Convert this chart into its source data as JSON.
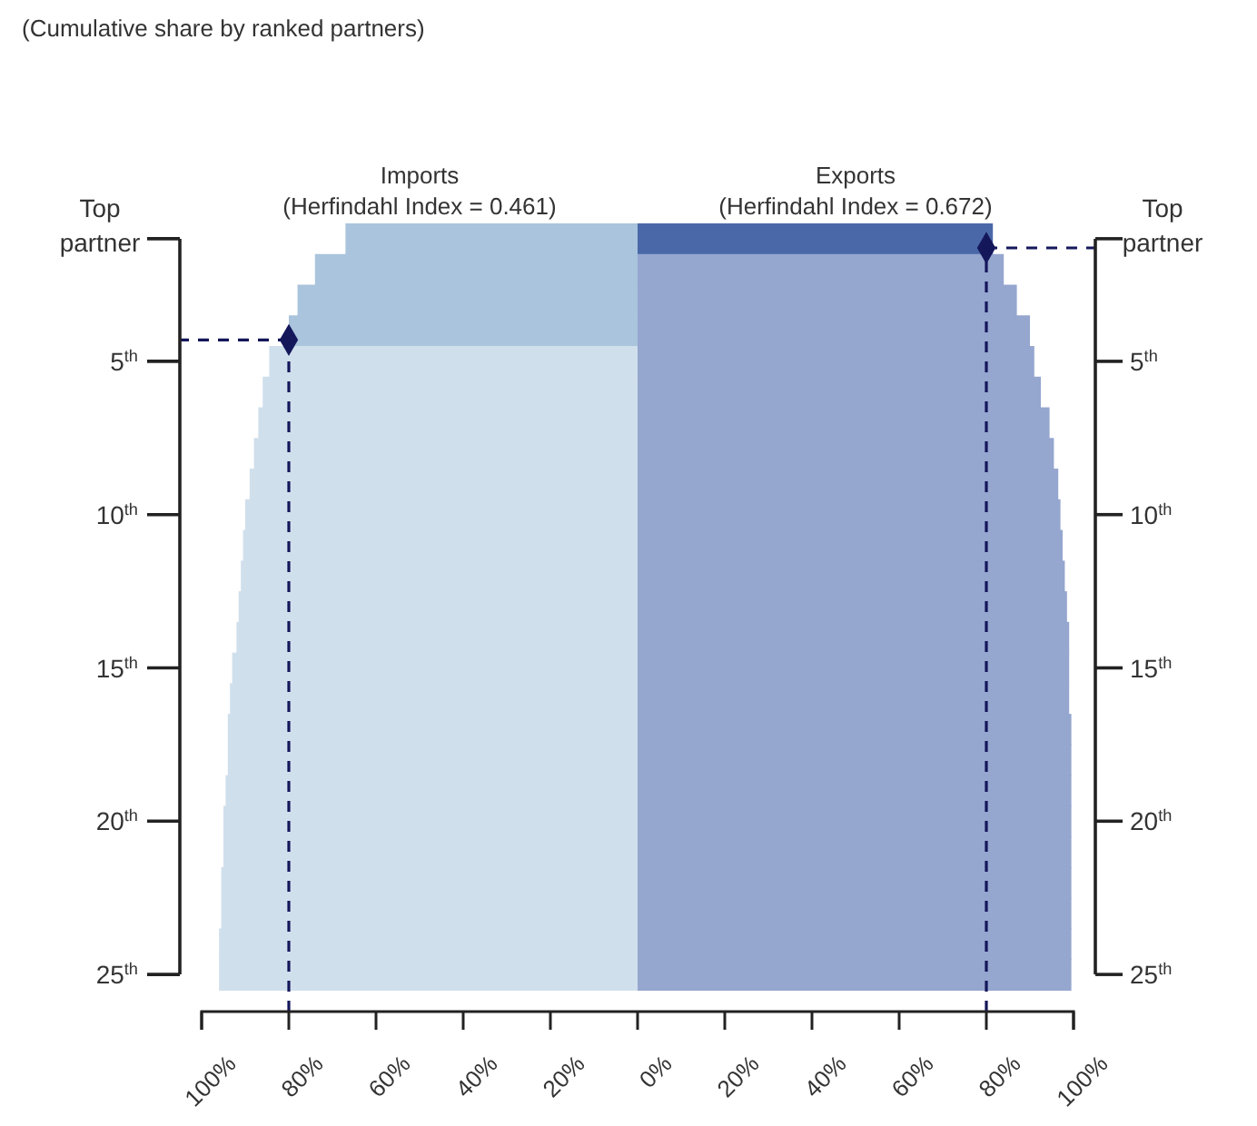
{
  "chart_data": {
    "type": "bar",
    "orientation": "horizontal",
    "stacked": true,
    "ref_lines": [
      {
        "axis": "x",
        "value": -80,
        "color": "#14175a",
        "line_style": "dashed"
      },
      {
        "axis": "x",
        "value": 80,
        "color": "#14175a",
        "line_style": "dashed"
      }
    ],
    "title": "(Cumulative share by ranked partners)",
    "categories": [
      "Top partner",
      null,
      null,
      null,
      "5$^{th}$",
      null,
      null,
      null,
      null,
      "10$^{th}$",
      null,
      null,
      null,
      null,
      "15$^{th}$",
      null,
      null,
      null,
      null,
      "20$^{th}$",
      null,
      null,
      null,
      null,
      "25$^{th}$"
    ],
    "series": [
      {
        "name": "Imports",
        "colors": [
          "#a9c4dc",
          "#a9c4dc",
          "#a9c4dc",
          "#a9c4dc",
          "#d0dfec",
          "#d0dfec",
          "#d0dfec",
          "#d0dfec",
          "#d0dfec",
          "#d0dfec",
          "#d0dfec",
          "#d0dfec",
          "#d0dfec",
          "#d0dfec",
          "#d0dfec",
          "#d0dfec",
          "#d0dfec",
          "#d0dfec",
          "#d0dfec",
          "#d0dfec",
          "#d0dfec",
          "#d0dfec",
          "#d0dfec",
          "#d0dfec",
          "#d0dfec"
        ],
        "values": [
          -67,
          -74,
          -78,
          -80,
          -84.5,
          -86,
          -87,
          -88,
          -89,
          -90,
          -90.5,
          -91,
          -91.5,
          -92,
          -93,
          -93.5,
          -94,
          -94,
          -94.5,
          -95,
          -95,
          -95.5,
          -95.5,
          -96,
          -96
        ]
      },
      {
        "name": "Exports",
        "colors": [
          "#4a68a8",
          "#95a6cf",
          "#95a6cf",
          "#95a6cf",
          "#95a6cf",
          "#95a6cf",
          "#95a6cf",
          "#95a6cf",
          "#95a6cf",
          "#95a6cf",
          "#95a6cf",
          "#95a6cf",
          "#95a6cf",
          "#95a6cf",
          "#95a6cf",
          "#95a6cf",
          "#95a6cf",
          "#95a6cf",
          "#95a6cf",
          "#95a6cf",
          "#95a6cf",
          "#95a6cf",
          "#95a6cf",
          "#95a6cf",
          "#95a6cf"
        ],
        "values": [
          81.5,
          84,
          87,
          90,
          91,
          92.5,
          94.5,
          95.5,
          96.5,
          97,
          97.5,
          98,
          98.5,
          99,
          99,
          99,
          99.5,
          99.5,
          99.5,
          99.5,
          99.5,
          99.5,
          99.5,
          99.5,
          99.5
        ]
      },
      {
        "type": "scatter",
        "marker": "diamond",
        "line_style": "dashed",
        "color": "#14175a",
        "values": [
          null,
          null,
          null,
          -80,
          null,
          null,
          null,
          null,
          null,
          null,
          null,
          null,
          null,
          null,
          null,
          null,
          null,
          null,
          null,
          null,
          null,
          null,
          null,
          null,
          null
        ]
      },
      {
        "type": "scatter",
        "marker": "diamond",
        "line_style": "dashed",
        "color": "#14175a",
        "values": [
          80,
          null,
          null,
          null,
          null,
          null,
          null,
          null,
          null,
          null,
          null,
          null,
          null,
          null,
          null,
          null,
          null,
          null,
          null,
          null,
          null,
          null,
          null,
          null,
          null
        ]
      }
    ],
    "annotations": [
      "(Herfindahl Index = 0.461)",
      "(Herfindahl Index = 0.672)"
    ],
    "xlim": [
      -100,
      100
    ],
    "xticks": [
      {
        "value": -100,
        "label": "100%"
      },
      {
        "value": -80,
        "label": "80%"
      },
      {
        "value": -60,
        "label": "60%"
      },
      {
        "value": -40,
        "label": "40%"
      },
      {
        "value": -20,
        "label": "20%"
      },
      {
        "value": 0,
        "label": "0%"
      },
      {
        "value": 20,
        "label": "20%"
      },
      {
        "value": 40,
        "label": "40%"
      },
      {
        "value": 60,
        "label": "60%"
      },
      {
        "value": 80,
        "label": "80%"
      },
      {
        "value": 100,
        "label": "100%"
      }
    ]
  }
}
